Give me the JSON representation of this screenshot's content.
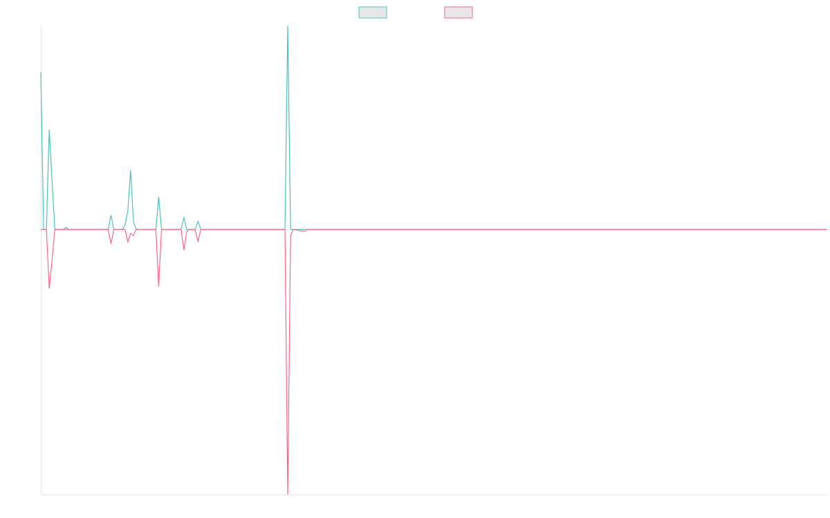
{
  "chart_data": {
    "type": "line",
    "x": [
      0,
      1,
      2,
      3,
      4,
      5,
      8,
      9,
      10,
      24,
      25,
      26,
      29,
      30,
      31,
      32,
      33,
      34,
      41,
      42,
      43,
      50,
      51,
      52,
      53,
      55,
      56,
      57,
      87,
      88,
      89,
      90,
      94,
      95,
      280
    ],
    "xlim": [
      0,
      280
    ],
    "ylim": [
      -1.3,
      1.0
    ],
    "series": [
      {
        "color": "#4bc0c0",
        "values": [
          0.77,
          0,
          0,
          0.49,
          0.24,
          0,
          0,
          0.01,
          0,
          0,
          0.07,
          0,
          0,
          0.02,
          0.09,
          0.29,
          0.04,
          0,
          0,
          0.16,
          0,
          0,
          0.06,
          0,
          0,
          0,
          0.04,
          0,
          0,
          1.0,
          0,
          0,
          0,
          0,
          0
        ]
      },
      {
        "color": "#ff6384",
        "values": [
          0,
          0,
          0,
          -0.29,
          -0.15,
          0,
          0,
          0,
          0,
          0,
          -0.07,
          0,
          0,
          0,
          -0.06,
          -0.02,
          -0.03,
          0,
          0,
          -0.28,
          0,
          0,
          -0.1,
          -0.01,
          0,
          0,
          -0.06,
          0,
          0,
          -1.3,
          -0.03,
          0,
          -0.01,
          0,
          0
        ]
      }
    ]
  }
}
